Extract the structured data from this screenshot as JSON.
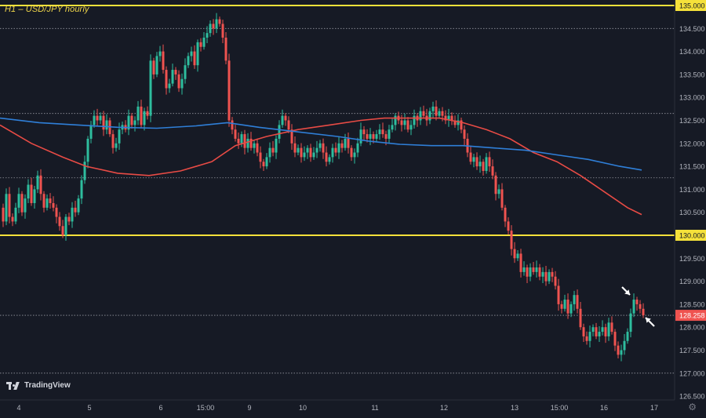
{
  "header": {
    "title": "H1 – USD/JPY hourly"
  },
  "brand": {
    "name": "TradingView"
  },
  "icons": {
    "gear": "gear-icon",
    "logo": "tradingview-logo-icon",
    "arrow": "arrow-annotation-icon"
  },
  "colors": {
    "background": "#161a25",
    "up": "#2ebd9e",
    "down": "#ef5350",
    "ma_red": "#e84b45",
    "ma_blue": "#2f7fd8",
    "level_yellow": "#f5e13a",
    "grid_dotted": "#9598a1",
    "price_label_bg": "#ef5350"
  },
  "chart_data": {
    "type": "candlestick",
    "title": "H1 – USD/JPY hourly",
    "x_tick_labels": [
      "4",
      "5",
      "6",
      "15:00",
      "9",
      "10",
      "11",
      "12",
      "13",
      "15:00",
      "16",
      "17"
    ],
    "y_tick_labels": [
      "135.000",
      "134.500",
      "134.000",
      "133.500",
      "133.000",
      "132.500",
      "132.000",
      "131.500",
      "131.000",
      "130.500",
      "130.000",
      "129.500",
      "129.000",
      "128.500",
      "128.000",
      "127.500",
      "127.000",
      "126.500"
    ],
    "ylim": [
      126.5,
      135.15
    ],
    "current_price": "128.258",
    "horizontal_levels": [
      {
        "value": 135.0,
        "style": "solid-yellow",
        "label": "135.000"
      },
      {
        "value": 130.0,
        "style": "solid-yellow",
        "label": "130.000"
      },
      {
        "value": 134.5,
        "style": "dotted"
      },
      {
        "value": 132.65,
        "style": "dotted"
      },
      {
        "value": 131.25,
        "style": "dotted"
      },
      {
        "value": 127.0,
        "style": "dotted"
      },
      {
        "value": 128.258,
        "style": "dotted"
      }
    ],
    "price_path": [
      [
        0,
        130.6
      ],
      [
        4,
        130.3
      ],
      [
        8,
        130.9
      ],
      [
        12,
        130.4
      ],
      [
        16,
        130.3
      ],
      [
        20,
        130.6
      ],
      [
        24,
        130.9
      ],
      [
        28,
        130.5
      ],
      [
        32,
        130.8
      ],
      [
        36,
        131.1
      ],
      [
        40,
        130.7
      ],
      [
        44,
        131.0
      ],
      [
        48,
        131.3
      ],
      [
        52,
        130.9
      ],
      [
        56,
        130.6
      ],
      [
        60,
        130.8
      ],
      [
        64,
        130.7
      ],
      [
        68,
        130.6
      ],
      [
        72,
        130.4
      ],
      [
        76,
        130.2
      ],
      [
        80,
        130.0
      ],
      [
        84,
        130.4
      ],
      [
        88,
        130.3
      ],
      [
        92,
        130.6
      ],
      [
        96,
        130.5
      ],
      [
        100,
        130.8
      ],
      [
        104,
        131.2
      ],
      [
        108,
        131.6
      ],
      [
        112,
        132.1
      ],
      [
        116,
        132.4
      ],
      [
        120,
        132.6
      ],
      [
        124,
        132.5
      ],
      [
        128,
        132.6
      ],
      [
        132,
        132.3
      ],
      [
        136,
        132.5
      ],
      [
        140,
        132.2
      ],
      [
        144,
        131.9
      ],
      [
        148,
        132.0
      ],
      [
        152,
        132.3
      ],
      [
        156,
        132.4
      ],
      [
        160,
        132.3
      ],
      [
        164,
        132.6
      ],
      [
        168,
        132.4
      ],
      [
        172,
        132.5
      ],
      [
        176,
        132.8
      ],
      [
        180,
        132.4
      ],
      [
        184,
        132.7
      ],
      [
        188,
        132.6
      ],
      [
        192,
        133.8
      ],
      [
        196,
        133.5
      ],
      [
        200,
        133.9
      ],
      [
        204,
        134.0
      ],
      [
        208,
        133.6
      ],
      [
        212,
        133.2
      ],
      [
        216,
        133.3
      ],
      [
        220,
        133.6
      ],
      [
        224,
        133.5
      ],
      [
        228,
        133.2
      ],
      [
        232,
        133.4
      ],
      [
        236,
        133.7
      ],
      [
        240,
        133.9
      ],
      [
        244,
        134.0
      ],
      [
        248,
        133.7
      ],
      [
        252,
        134.2
      ],
      [
        256,
        134.1
      ],
      [
        260,
        134.3
      ],
      [
        264,
        134.4
      ],
      [
        268,
        134.6
      ],
      [
        272,
        134.5
      ],
      [
        276,
        134.7
      ],
      [
        280,
        134.6
      ],
      [
        284,
        134.3
      ],
      [
        288,
        133.8
      ],
      [
        292,
        132.5
      ],
      [
        296,
        132.3
      ],
      [
        300,
        132.1
      ],
      [
        304,
        132.0
      ],
      [
        308,
        132.2
      ],
      [
        312,
        131.9
      ],
      [
        316,
        132.1
      ],
      [
        320,
        131.9
      ],
      [
        324,
        132.0
      ],
      [
        328,
        131.8
      ],
      [
        332,
        131.6
      ],
      [
        336,
        131.5
      ],
      [
        340,
        131.7
      ],
      [
        344,
        131.9
      ],
      [
        348,
        131.8
      ],
      [
        352,
        132.1
      ],
      [
        356,
        132.4
      ],
      [
        360,
        132.6
      ],
      [
        364,
        132.5
      ],
      [
        368,
        132.3
      ],
      [
        372,
        132.0
      ],
      [
        376,
        131.8
      ],
      [
        380,
        131.9
      ],
      [
        384,
        131.7
      ],
      [
        388,
        131.8
      ],
      [
        392,
        131.9
      ],
      [
        396,
        131.7
      ],
      [
        400,
        131.8
      ],
      [
        404,
        131.9
      ],
      [
        408,
        132.0
      ],
      [
        412,
        131.8
      ],
      [
        416,
        131.6
      ],
      [
        420,
        131.7
      ],
      [
        424,
        131.9
      ],
      [
        428,
        131.8
      ],
      [
        432,
        132.0
      ],
      [
        436,
        131.9
      ],
      [
        440,
        132.1
      ],
      [
        444,
        131.9
      ],
      [
        448,
        131.7
      ],
      [
        452,
        131.8
      ],
      [
        456,
        132.0
      ],
      [
        460,
        132.3
      ],
      [
        464,
        132.2
      ],
      [
        468,
        132.1
      ],
      [
        472,
        132.2
      ],
      [
        476,
        132.1
      ],
      [
        480,
        132.2
      ],
      [
        484,
        132.3
      ],
      [
        488,
        132.2
      ],
      [
        492,
        132.1
      ],
      [
        496,
        132.3
      ],
      [
        500,
        132.4
      ],
      [
        504,
        132.6
      ],
      [
        508,
        132.5
      ],
      [
        512,
        132.4
      ],
      [
        516,
        132.5
      ],
      [
        520,
        132.3
      ],
      [
        524,
        132.4
      ],
      [
        528,
        132.6
      ],
      [
        532,
        132.5
      ],
      [
        536,
        132.7
      ],
      [
        540,
        132.6
      ],
      [
        544,
        132.5
      ],
      [
        548,
        132.7
      ],
      [
        552,
        132.8
      ],
      [
        556,
        132.6
      ],
      [
        560,
        132.7
      ],
      [
        564,
        132.6
      ],
      [
        568,
        132.5
      ],
      [
        572,
        132.6
      ],
      [
        576,
        132.5
      ],
      [
        580,
        132.4
      ],
      [
        584,
        132.5
      ],
      [
        588,
        132.3
      ],
      [
        592,
        132.1
      ],
      [
        596,
        131.8
      ],
      [
        600,
        131.6
      ],
      [
        604,
        131.7
      ],
      [
        608,
        131.5
      ],
      [
        612,
        131.6
      ],
      [
        616,
        131.4
      ],
      [
        620,
        131.7
      ],
      [
        624,
        131.5
      ],
      [
        628,
        131.3
      ],
      [
        632,
        130.9
      ],
      [
        636,
        131.0
      ],
      [
        640,
        130.6
      ],
      [
        644,
        130.3
      ],
      [
        648,
        130.1
      ],
      [
        652,
        129.7
      ],
      [
        656,
        129.5
      ],
      [
        660,
        129.6
      ],
      [
        664,
        129.2
      ],
      [
        668,
        129.3
      ],
      [
        672,
        129.1
      ],
      [
        676,
        129.3
      ],
      [
        680,
        129.2
      ],
      [
        684,
        129.3
      ],
      [
        688,
        129.1
      ],
      [
        692,
        129.2
      ],
      [
        696,
        129.0
      ],
      [
        700,
        129.2
      ],
      [
        704,
        129.1
      ],
      [
        708,
        128.9
      ],
      [
        712,
        128.5
      ],
      [
        716,
        128.4
      ],
      [
        720,
        128.6
      ],
      [
        724,
        128.3
      ],
      [
        728,
        128.5
      ],
      [
        732,
        128.7
      ],
      [
        736,
        128.4
      ],
      [
        740,
        128.0
      ],
      [
        744,
        127.8
      ],
      [
        748,
        127.7
      ],
      [
        752,
        127.9
      ],
      [
        756,
        128.0
      ],
      [
        760,
        127.8
      ],
      [
        764,
        127.9
      ],
      [
        768,
        128.0
      ],
      [
        772,
        127.8
      ],
      [
        776,
        128.1
      ],
      [
        780,
        127.9
      ],
      [
        784,
        127.6
      ],
      [
        788,
        127.4
      ],
      [
        792,
        127.5
      ],
      [
        796,
        127.7
      ],
      [
        800,
        127.9
      ],
      [
        804,
        128.3
      ],
      [
        808,
        128.6
      ],
      [
        812,
        128.5
      ],
      [
        816,
        128.4
      ],
      [
        820,
        128.26
      ]
    ],
    "series": [
      {
        "kind": "moving-average",
        "color": "#e84b45",
        "points": [
          [
            0,
            132.4
          ],
          [
            40,
            132.0
          ],
          [
            80,
            131.7
          ],
          [
            110,
            131.5
          ],
          [
            150,
            131.35
          ],
          [
            190,
            131.3
          ],
          [
            230,
            131.4
          ],
          [
            270,
            131.6
          ],
          [
            300,
            131.95
          ],
          [
            340,
            132.15
          ],
          [
            380,
            132.3
          ],
          [
            420,
            132.4
          ],
          [
            460,
            132.5
          ],
          [
            490,
            132.55
          ],
          [
            530,
            132.55
          ],
          [
            560,
            132.55
          ],
          [
            590,
            132.45
          ],
          [
            620,
            132.3
          ],
          [
            650,
            132.1
          ],
          [
            680,
            131.8
          ],
          [
            710,
            131.6
          ],
          [
            740,
            131.3
          ],
          [
            770,
            130.95
          ],
          [
            800,
            130.6
          ],
          [
            818,
            130.45
          ]
        ]
      },
      {
        "kind": "moving-average",
        "color": "#2f7fd8",
        "points": [
          [
            0,
            132.55
          ],
          [
            50,
            132.45
          ],
          [
            100,
            132.4
          ],
          [
            150,
            132.35
          ],
          [
            200,
            132.33
          ],
          [
            250,
            132.38
          ],
          [
            290,
            132.45
          ],
          [
            330,
            132.35
          ],
          [
            380,
            132.25
          ],
          [
            430,
            132.15
          ],
          [
            470,
            132.05
          ],
          [
            510,
            131.98
          ],
          [
            550,
            131.95
          ],
          [
            590,
            131.95
          ],
          [
            630,
            131.9
          ],
          [
            670,
            131.85
          ],
          [
            710,
            131.75
          ],
          [
            750,
            131.65
          ],
          [
            790,
            131.5
          ],
          [
            818,
            131.42
          ]
        ]
      }
    ]
  }
}
